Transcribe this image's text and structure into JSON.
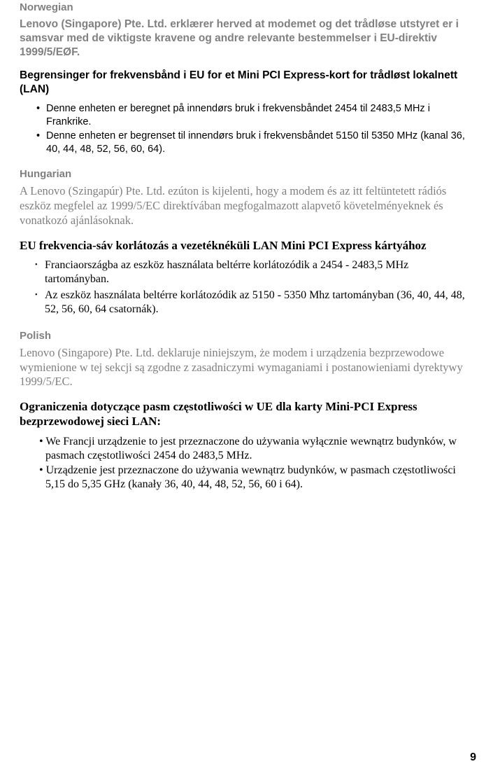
{
  "norwegian": {
    "header": "Norwegian",
    "declaration": "Lenovo (Singapore) Pte. Ltd. erklærer herved at modemet og det trådløse utstyret er i samsvar med de viktigste kravene og andre relevante bestemmelser i EU-direktiv 1999/5/EØF.",
    "subtitle": "Begrensinger for frekvensbånd i EU for et Mini PCI Express-kort for trådløst lokalnett (LAN)",
    "bullets": [
      "Denne enheten er beregnet på innendørs bruk i frekvensbåndet 2454 til 2483,5 MHz i Frankrike.",
      "Denne enheten er begrenset til innendørs bruk i frekvensbåndet 5150 til 5350 MHz (kanal 36, 40, 44, 48, 52, 56, 60, 64)."
    ]
  },
  "hungarian": {
    "header": "Hungarian",
    "declaration": "A Lenovo (Szingapúr) Pte. Ltd. ezúton is kijelenti, hogy a modem és az itt feltüntetett rádiós eszköz megfelel az 1999/5/EC direktívában megfogalmazott alapvető követelményeknek és vonatkozó ajánlásoknak.",
    "subtitle": "EU frekvencia-sáv korlátozás a vezetéknéküli LAN Mini PCI Express kártyához",
    "bullets": [
      "Franciaországba az eszköz használata beltérre korlátozódik a 2454 - 2483,5 MHz tartományban.",
      "Az eszköz használata beltérre korlátozódik az 5150 - 5350 Mhz tartományban (36, 40, 44, 48, 52, 56, 60, 64 csatornák)."
    ]
  },
  "polish": {
    "header": "Polish",
    "declaration": "Lenovo (Singapore) Pte. Ltd. deklaruje niniejszym, że modem i urządzenia bezprzewodowe wymienione w tej sekcji są zgodne z zasadniczymi wymaganiami i postanowieniami dyrektywy 1999/5/EC.",
    "subtitle": "Ograniczenia dotyczące pasm częstotliwości w UE dla karty Mini-PCI Express bezprzewodowej sieci LAN:",
    "bullets": [
      "• We Francji urządzenie to jest przeznaczone do używania wyłącznie wewnątrz budynków, w pasmach częstotliwości 2454 do 2483,5 MHz.",
      "• Urządzenie jest przeznaczone do używania wewnątrz budynków, w pasmach częstotliwości 5,15 do 5,35 GHz (kanały 36, 40, 44, 48, 52, 56, 60 i 64)."
    ]
  },
  "page_number": "9"
}
